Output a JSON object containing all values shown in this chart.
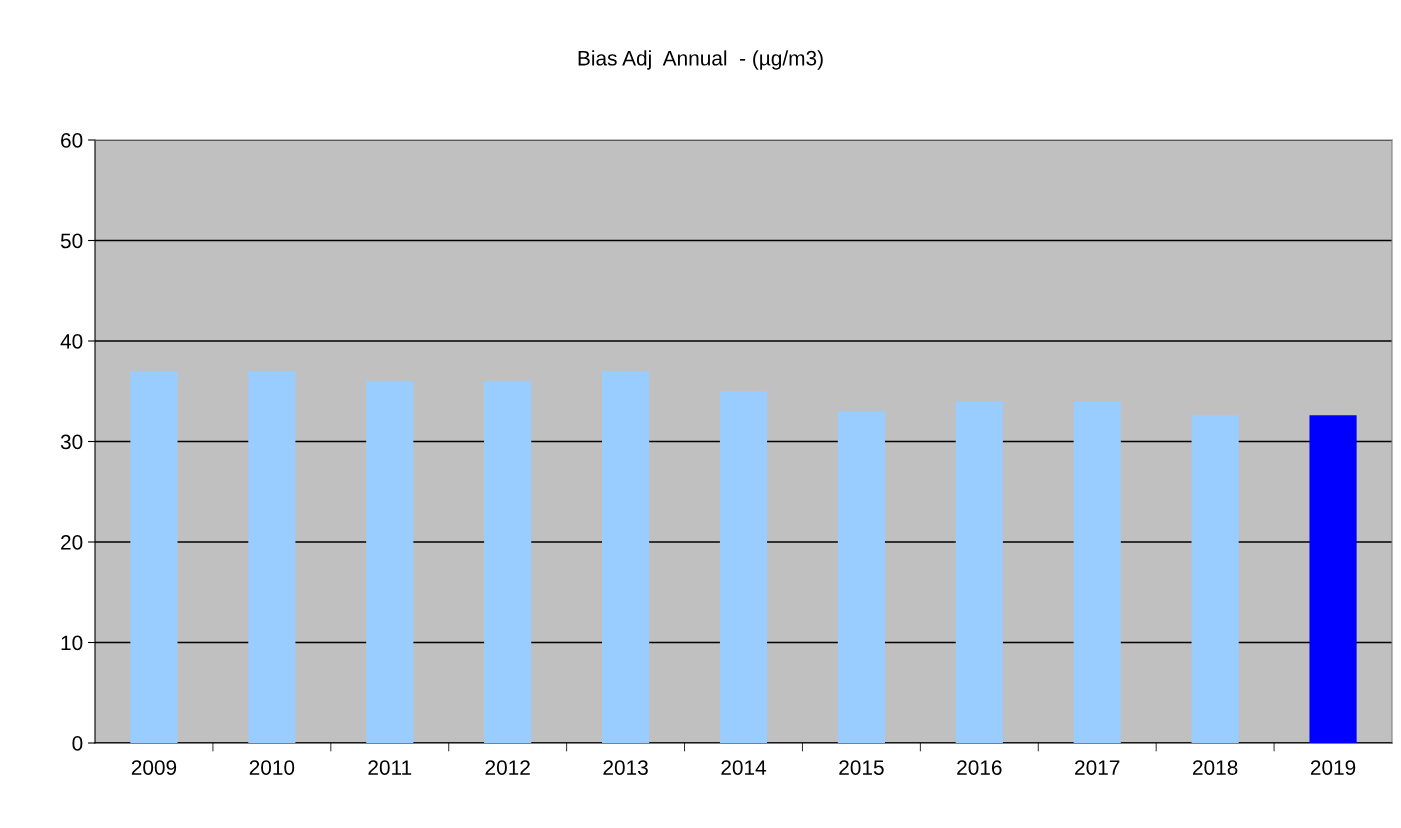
{
  "chart_data": {
    "type": "bar",
    "title": "Bias Adj  Annual  - (µg/m3)",
    "categories": [
      "2009",
      "2010",
      "2011",
      "2012",
      "2013",
      "2014",
      "2015",
      "2016",
      "2017",
      "2018",
      "2019"
    ],
    "values": [
      37,
      37,
      36,
      36,
      37,
      35,
      33,
      34,
      34,
      32.6,
      32.6
    ],
    "colors": [
      "#99ccff",
      "#99ccff",
      "#99ccff",
      "#99ccff",
      "#99ccff",
      "#99ccff",
      "#99ccff",
      "#99ccff",
      "#99ccff",
      "#99ccff",
      "#0000ff"
    ],
    "ylim": [
      0,
      60
    ],
    "yticks": [
      0,
      10,
      20,
      30,
      40,
      50,
      60
    ],
    "grid": "y",
    "legend": false
  }
}
